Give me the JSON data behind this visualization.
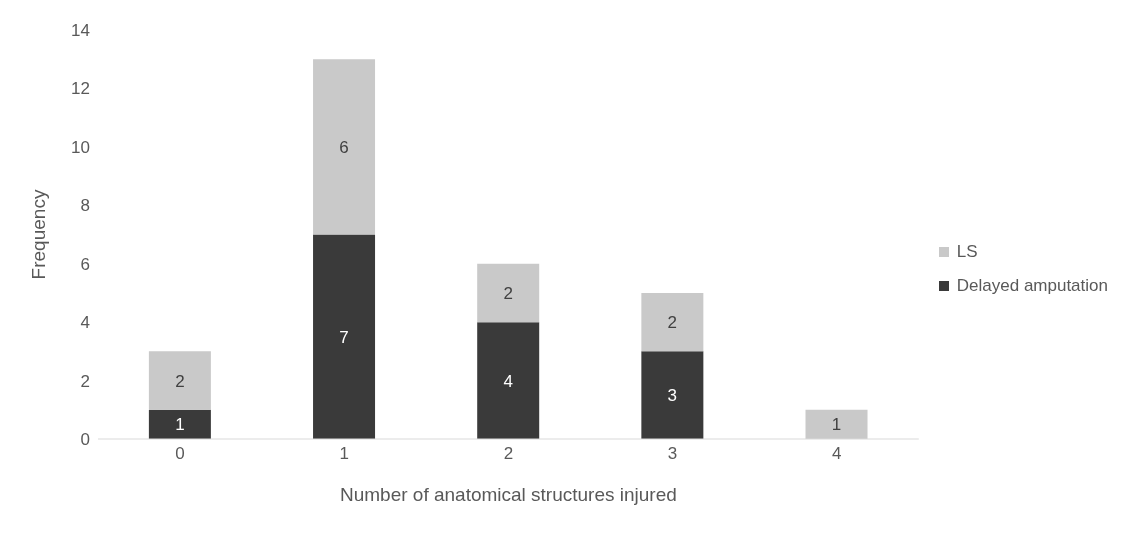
{
  "chart_data": {
    "type": "bar",
    "stacked": true,
    "xlabel": "Number  of anatomical structures injured",
    "ylabel": "Frequency",
    "categories": [
      "0",
      "1",
      "2",
      "3",
      "4"
    ],
    "series": [
      {
        "name": "Delayed amputation",
        "color": "#3a3a3a",
        "values": [
          1,
          7,
          4,
          3,
          null
        ]
      },
      {
        "name": "LS",
        "color": "#c9c9c9",
        "values": [
          2,
          6,
          2,
          2,
          1
        ]
      }
    ],
    "ylim": [
      0,
      14
    ],
    "yticks": [
      0,
      2,
      4,
      6,
      8,
      10,
      12,
      14
    ],
    "grid": false,
    "legend": "right",
    "data_labels": true
  }
}
